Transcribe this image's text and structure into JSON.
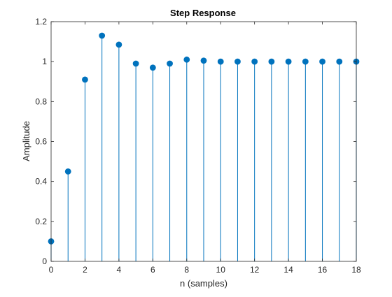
{
  "chart_data": {
    "type": "stem",
    "title": "Step Response",
    "xlabel": "n (samples)",
    "ylabel": "Amplitude",
    "xlim": [
      0,
      18
    ],
    "ylim": [
      0,
      1.2
    ],
    "xticks": [
      "0",
      "2",
      "4",
      "6",
      "8",
      "10",
      "12",
      "14",
      "16",
      "18"
    ],
    "yticks": [
      "0",
      "0.2",
      "0.4",
      "0.6",
      "0.8",
      "1",
      "1.2"
    ],
    "grid": false,
    "legend": "none",
    "series": [
      {
        "x": [
          0,
          1,
          2,
          3,
          4,
          5,
          6,
          7,
          8,
          9,
          10,
          11,
          12,
          13,
          14,
          15,
          16,
          17,
          18
        ],
        "values": [
          0.1,
          0.45,
          0.91,
          1.13,
          1.085,
          0.99,
          0.97,
          0.99,
          1.01,
          1.005,
          1.0,
          1.0,
          1.0,
          1.0,
          1.0,
          1.0,
          1.0,
          1.0,
          1.0
        ],
        "color": "#0072BD"
      }
    ]
  },
  "colors": {
    "stem": "#0072BD",
    "axis": "#262626"
  }
}
